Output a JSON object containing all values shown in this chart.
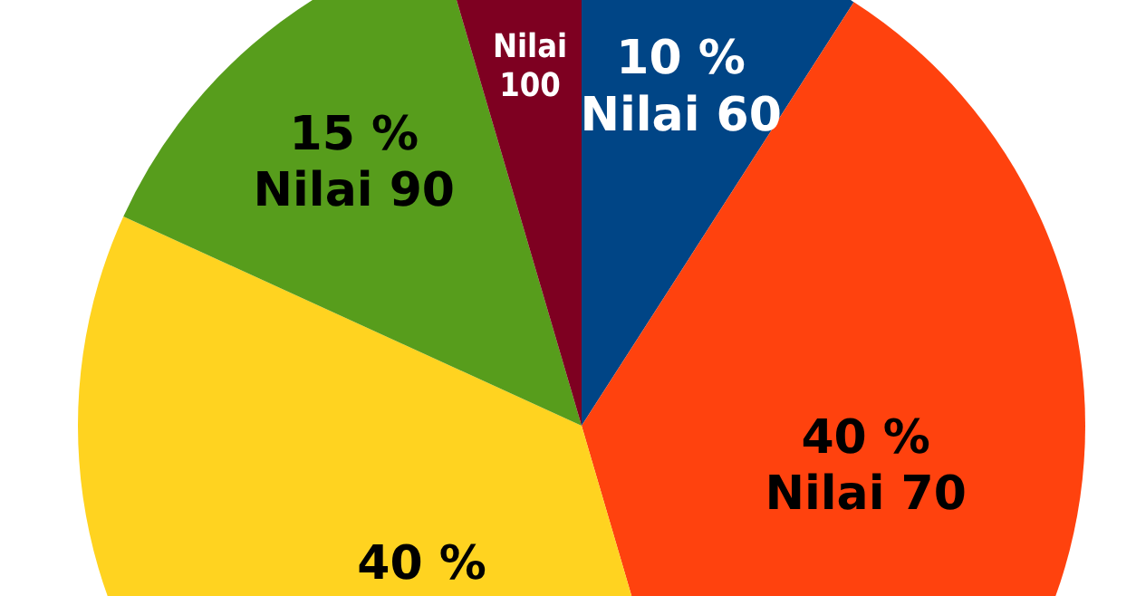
{
  "chart_data": {
    "type": "pie",
    "categories": [
      "Nilai 60",
      "Nilai 70",
      null,
      "Nilai 90",
      "Nilai 100"
    ],
    "values": [
      10,
      40,
      40,
      15,
      5
    ],
    "value_labels": [
      "10 %",
      "40 %",
      "40 %",
      "15 %",
      null
    ],
    "colors": [
      "#004586",
      "#ff420e",
      "#ffd320",
      "#579d1c",
      "#7e0021"
    ]
  }
}
